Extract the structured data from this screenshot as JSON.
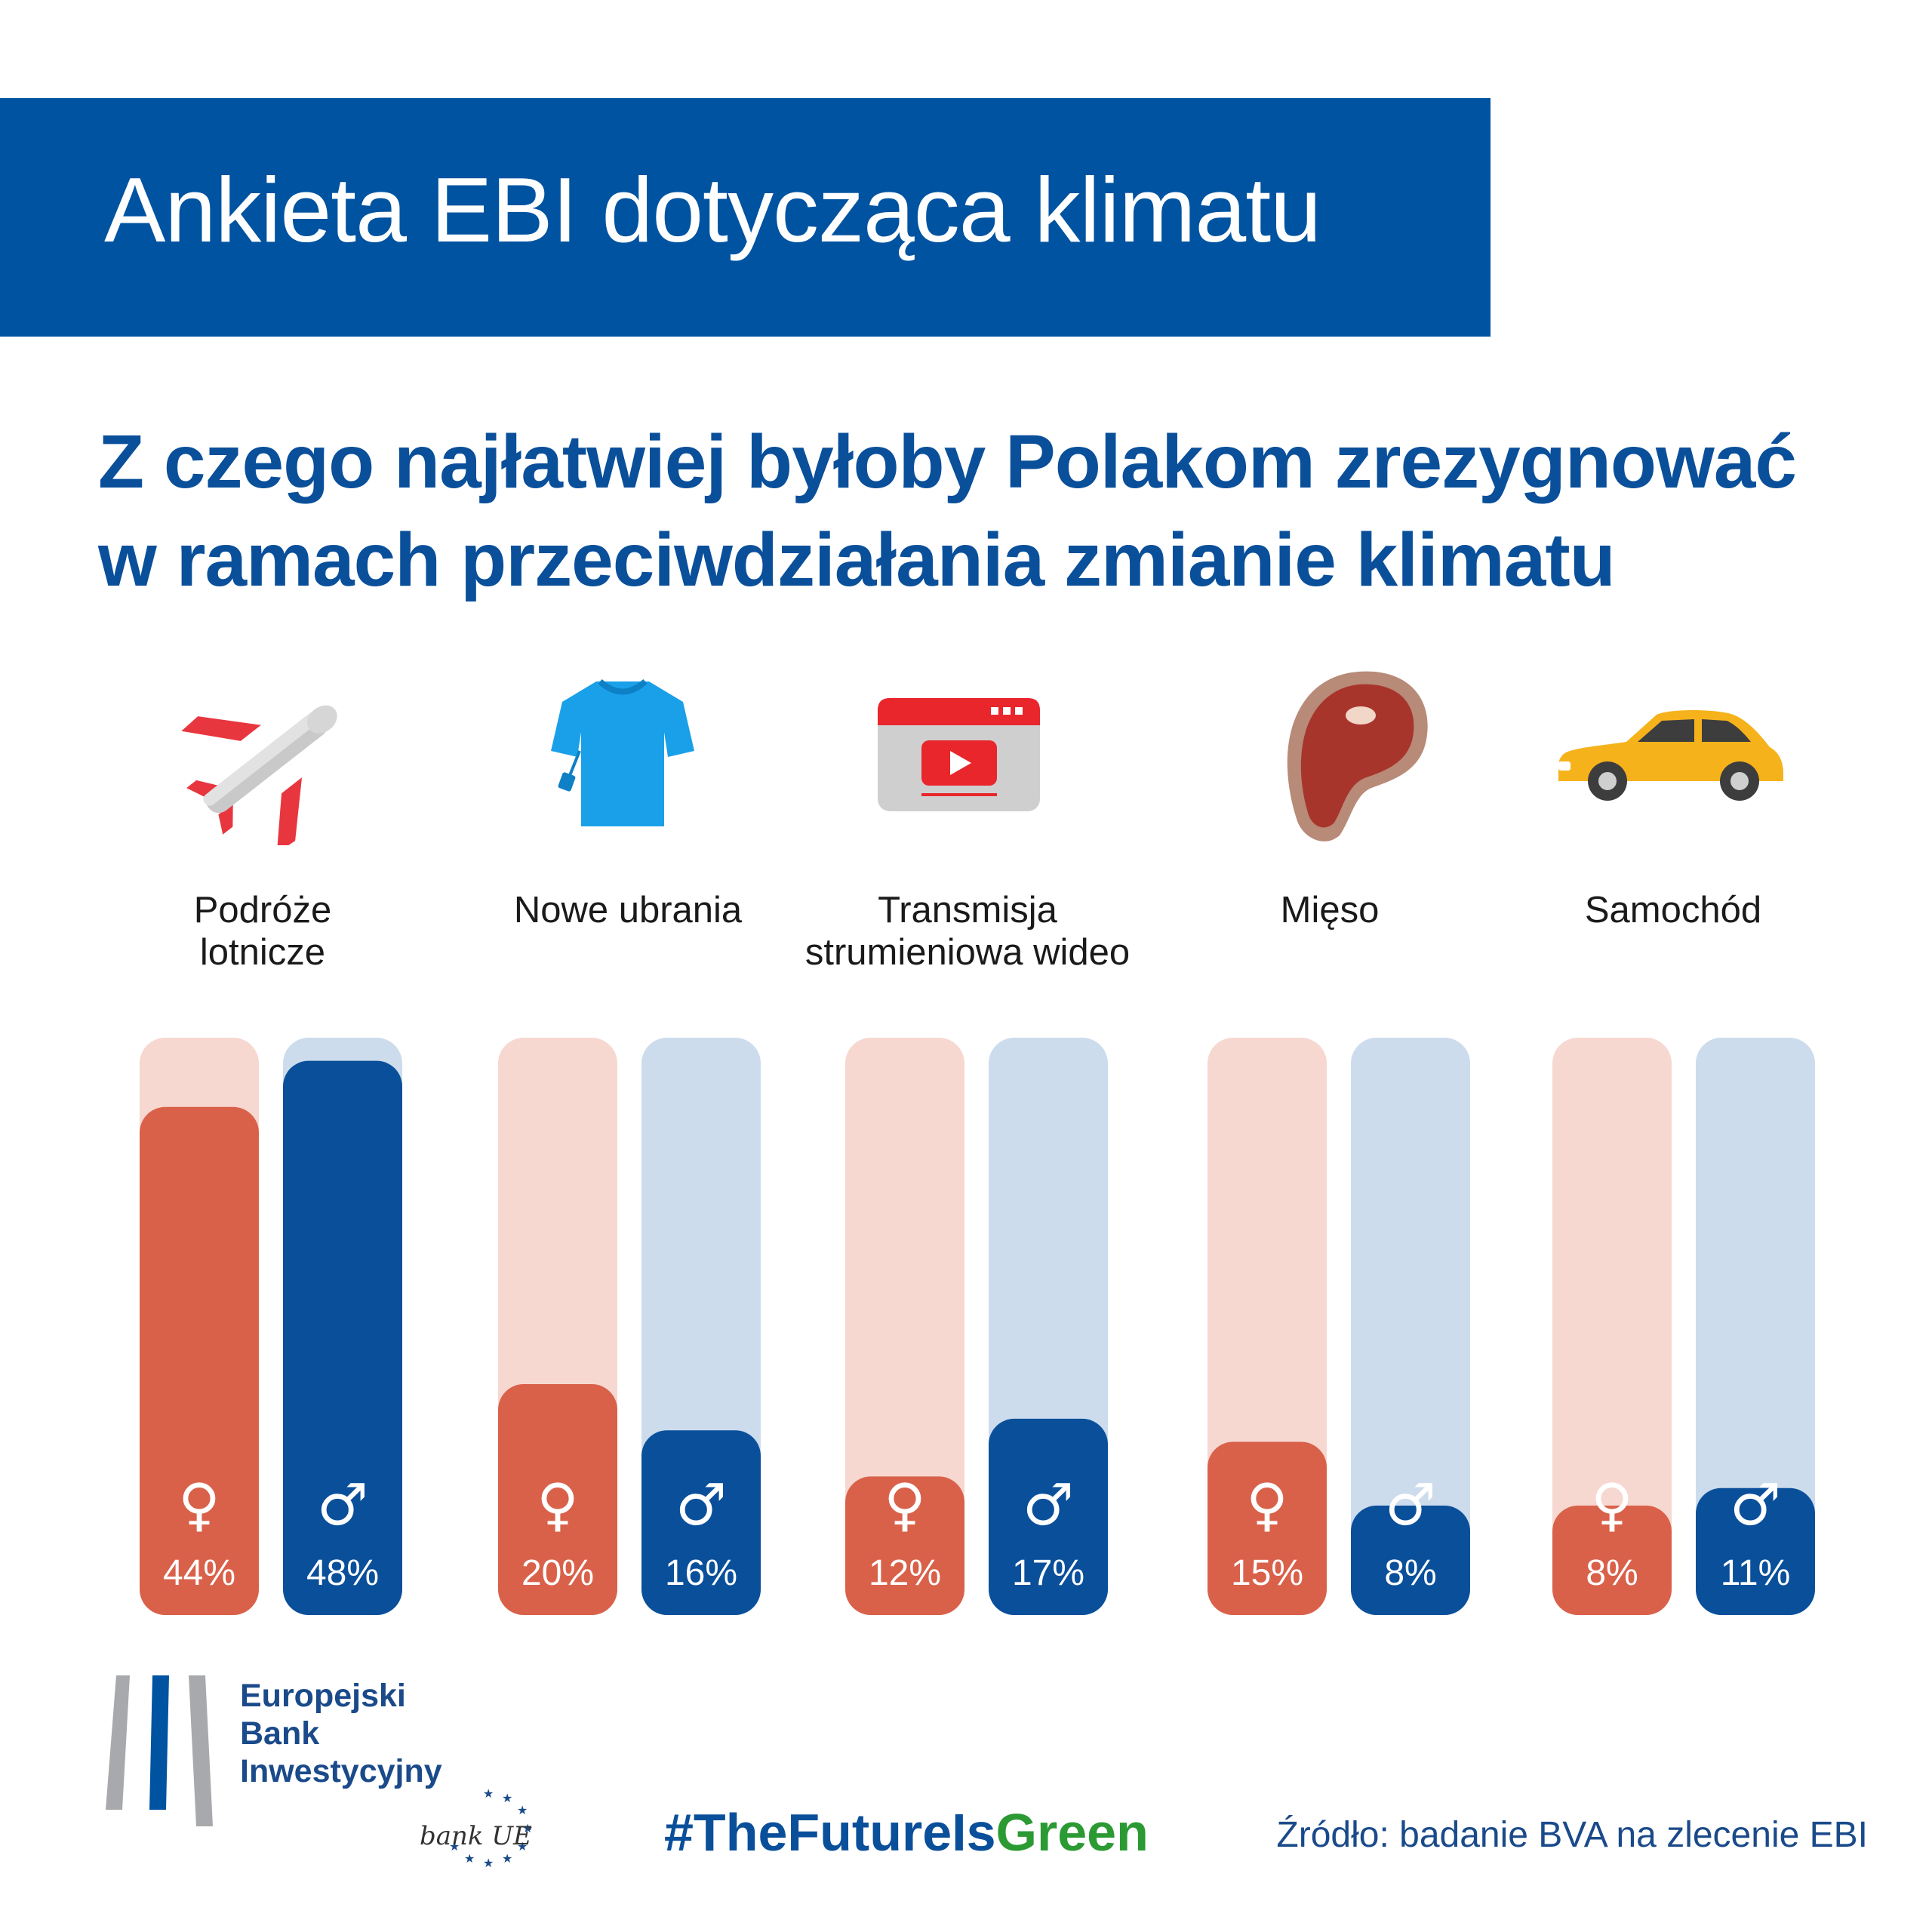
{
  "header": {
    "title": "Ankieta EBI dotycząca klimatu"
  },
  "subtitle": {
    "line1": "Z czego najłatwiej byłoby Polakom zrezygnować",
    "line2": "w ramach przeciwdziałania zmianie klimatu"
  },
  "colors": {
    "brand_blue": "#0053a0",
    "female": "#d9614a",
    "female_track": "#f6d8d1",
    "male": "#0a4f9a",
    "male_track": "#ccdcec",
    "green": "#2b9a33"
  },
  "chart_data": {
    "type": "bar",
    "title": "Z czego najłatwiej byłoby Polakom zrezygnować w ramach przeciwdziałania zmianie klimatu",
    "categories": [
      "Podróże lotnicze",
      "Nowe ubrania",
      "Transmisja strumieniowa wideo",
      "Mięso",
      "Samochód"
    ],
    "category_lines": [
      [
        "Podróże",
        "lotnicze"
      ],
      [
        "Nowe ubrania"
      ],
      [
        "Transmisja",
        "strumieniowa wideo"
      ],
      [
        "Mięso"
      ],
      [
        "Samochód"
      ]
    ],
    "icons": [
      "airplane-icon",
      "t-shirt-icon",
      "video-stream-icon",
      "meat-icon",
      "car-icon"
    ],
    "series": [
      {
        "name": "Kobiety",
        "symbol": "♀",
        "values": [
          44,
          20,
          12,
          15,
          8
        ],
        "labels": [
          "44%",
          "20%",
          "12%",
          "15%",
          "8%"
        ]
      },
      {
        "name": "Mężczyźni",
        "symbol": "♂",
        "values": [
          48,
          16,
          17,
          8,
          11
        ],
        "labels": [
          "48%",
          "16%",
          "17%",
          "8%",
          "11%"
        ]
      }
    ],
    "unit": "%",
    "ylim": [
      0,
      50
    ]
  },
  "footer": {
    "org_lines": [
      "Europejski",
      "Bank",
      "Inwestycyjny"
    ],
    "badge": "bank UE",
    "hashtag_prefix": "#TheFutureIs",
    "hashtag_suffix": "Green",
    "source": "Źródło: badanie BVA na zlecenie EBI"
  }
}
